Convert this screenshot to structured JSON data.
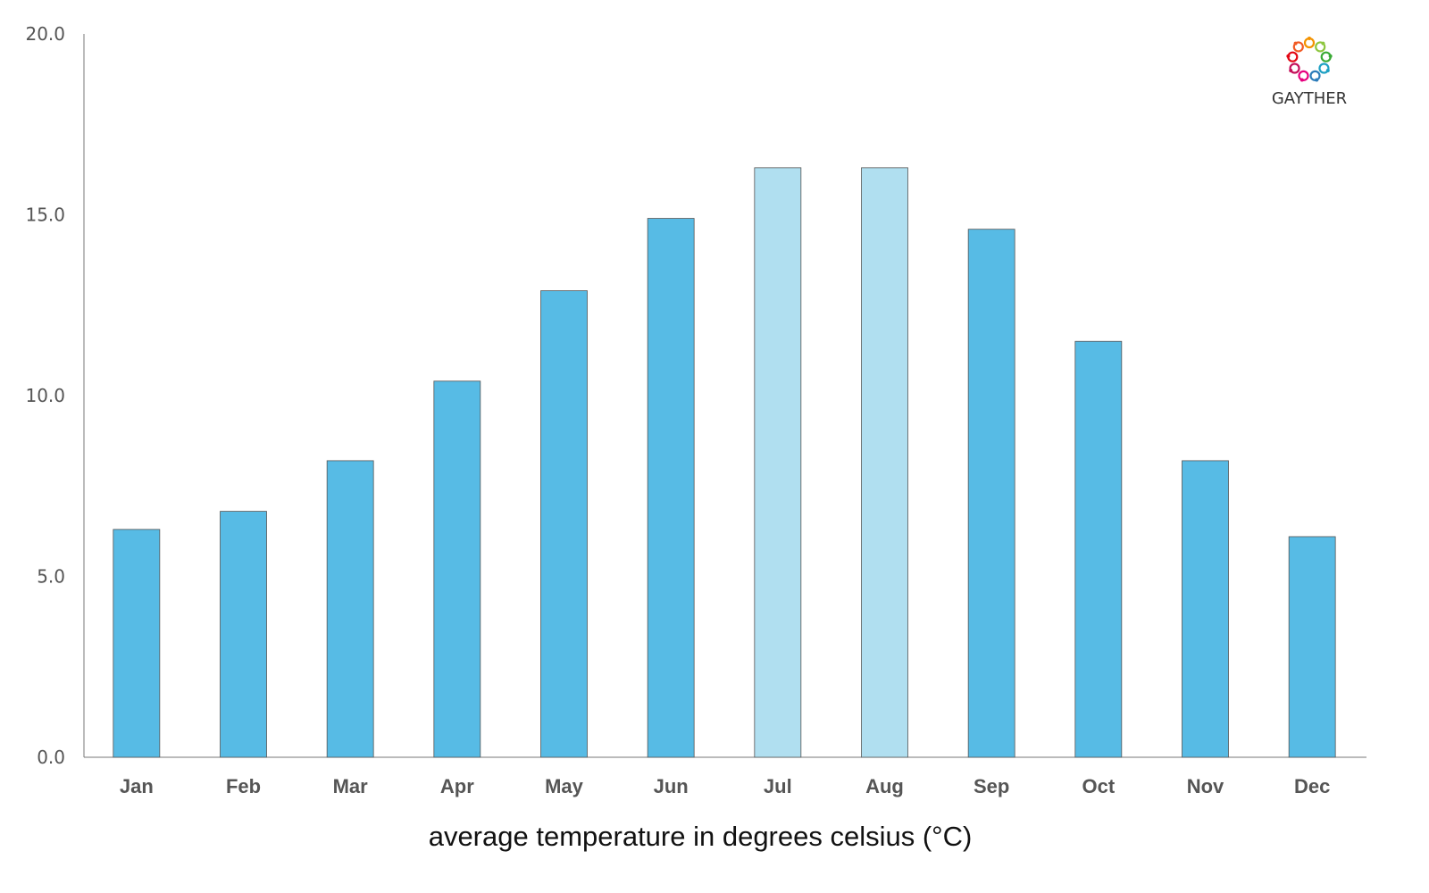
{
  "chart_data": {
    "type": "bar",
    "title": "",
    "xlabel": "average temperature in degrees celsius (°C)",
    "ylabel": "",
    "ylim": [
      0,
      20
    ],
    "yticks": [
      "0.0",
      "5.0",
      "10.0",
      "15.0",
      "20.0"
    ],
    "grid": false,
    "categories": [
      "Jan",
      "Feb",
      "Mar",
      "Apr",
      "May",
      "Jun",
      "Jul",
      "Aug",
      "Sep",
      "Oct",
      "Nov",
      "Dec"
    ],
    "values": [
      6.3,
      6.8,
      8.2,
      10.4,
      12.9,
      14.9,
      16.3,
      16.3,
      14.6,
      11.5,
      8.2,
      6.1
    ],
    "highlighted": [
      "Jul",
      "Aug"
    ],
    "colors": {
      "bar": "#57bbe5",
      "highlight": "#b0dff0",
      "bar_edge": "#555555"
    }
  },
  "logo": {
    "text": "GAYTHER",
    "colors": [
      "#f39200",
      "#8dc63f",
      "#3aaa35",
      "#1ea0c3",
      "#2b7bb9",
      "#e6007e",
      "#c4105a",
      "#e30613",
      "#f15a24"
    ]
  }
}
